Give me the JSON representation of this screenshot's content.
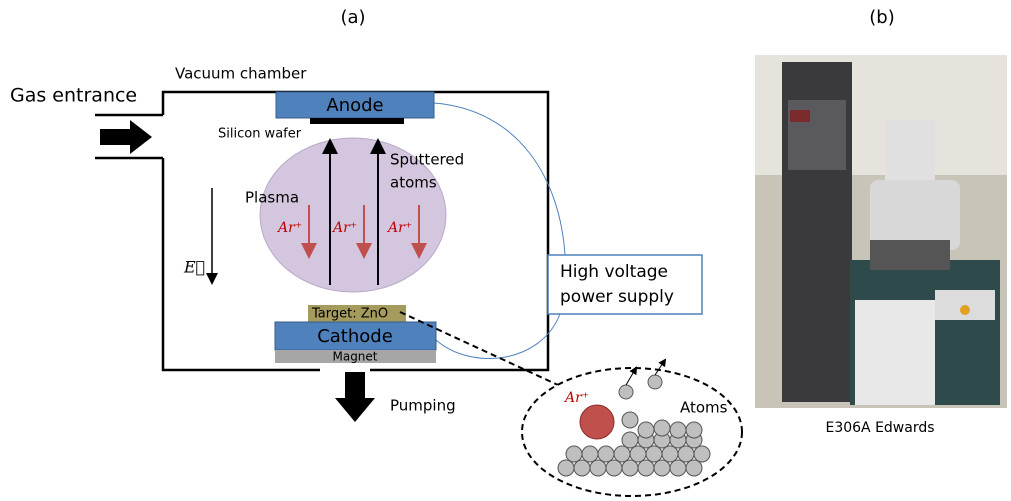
{
  "panel_a": {
    "label": "(a)",
    "vacuum_chamber": "Vacuum chamber",
    "gas_entrance": "Gas entrance",
    "anode": "Anode",
    "silicon_wafer": "Silicon wafer",
    "plasma": "Plasma",
    "sputtered_atoms": [
      "Sputtered",
      "atoms"
    ],
    "ions": [
      "Ar⁺",
      "Ar⁺",
      "Ar⁺"
    ],
    "field": "E⃗",
    "power_supply": [
      "High voltage",
      "power supply"
    ],
    "target": "Target: ZnO",
    "cathode": "Cathode",
    "magnet": "Magnet",
    "pumping": "Pumping",
    "zoom": {
      "ion": "Ar⁺",
      "atoms": "Atoms"
    }
  },
  "panel_b": {
    "label": "(b)",
    "caption": "E306A Edwards"
  }
}
